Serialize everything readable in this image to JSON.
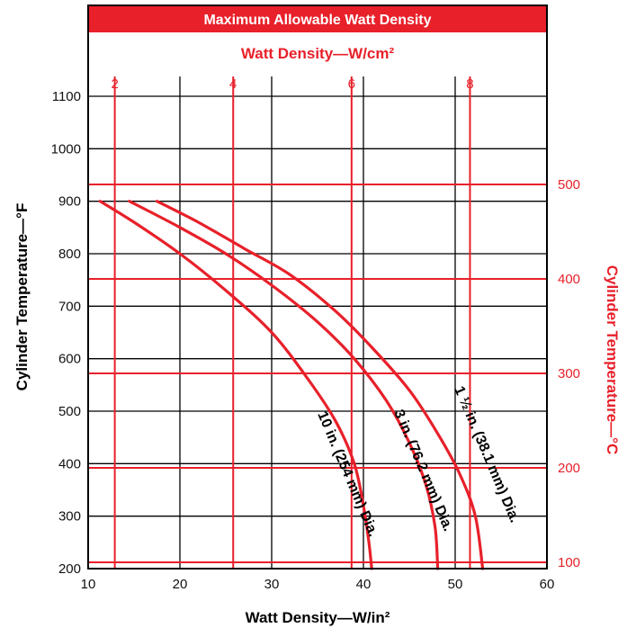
{
  "colors": {
    "accent_red": "#e8202a",
    "grid_black": "#000000",
    "background": "#ffffff"
  },
  "chart_data": {
    "type": "line",
    "title": "Maximum Allowable Watt Density",
    "xlabel": "Watt Density—W/in²",
    "ylabel": "Cylinder Temperature—°F",
    "secondary_x_label": "Watt Density—W/cm²",
    "secondary_y_label": "Cylinder Temperature—°C",
    "xlim": [
      10,
      60
    ],
    "ylim": [
      200,
      1100
    ],
    "x_ticks": [
      10,
      20,
      30,
      40,
      50,
      60
    ],
    "y_ticks": [
      200,
      300,
      400,
      500,
      600,
      700,
      800,
      900,
      1000,
      1100
    ],
    "secondary_x_ticks": [
      2,
      4,
      6,
      8
    ],
    "secondary_y_ticks": [
      100,
      200,
      300,
      400,
      500
    ],
    "grid": true,
    "series": [
      {
        "name": "10 in. (254 mm) Dia.",
        "x": [
          11.3,
          15,
          20,
          25,
          30,
          34,
          37,
          39,
          40,
          40.6,
          40.9
        ],
        "y": [
          900,
          860,
          800,
          730,
          650,
          560,
          480,
          400,
          320,
          250,
          200
        ]
      },
      {
        "name": "3 in. (76.2 mm) Dia.",
        "x": [
          14.5,
          20,
          25,
          30,
          35,
          39,
          42.5,
          45,
          46.8,
          47.8,
          48.1
        ],
        "y": [
          900,
          850,
          800,
          740,
          670,
          600,
          520,
          440,
          360,
          280,
          200
        ]
      },
      {
        "name": "1 ½ in. (38.1 mm) Dia.",
        "x": [
          17.5,
          22,
          27,
          32,
          37,
          41,
          45,
          48,
          50.5,
          52.2,
          53
        ],
        "y": [
          900,
          860,
          810,
          760,
          690,
          620,
          540,
          460,
          380,
          300,
          200
        ]
      }
    ]
  }
}
